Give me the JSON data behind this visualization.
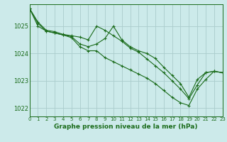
{
  "title": "Graphe pression niveau de la mer (hPa)",
  "background_color": "#cceaea",
  "grid_color": "#aacccc",
  "line_color": "#1a6b1a",
  "spine_color": "#1a6b1a",
  "xlim": [
    0,
    23
  ],
  "ylim": [
    1021.7,
    1025.8
  ],
  "yticks": [
    1022,
    1023,
    1024,
    1025
  ],
  "xticks": [
    0,
    1,
    2,
    3,
    4,
    5,
    6,
    7,
    8,
    9,
    10,
    11,
    12,
    13,
    14,
    15,
    16,
    17,
    18,
    19,
    20,
    21,
    22,
    23
  ],
  "series": [
    [
      1025.65,
      1025.15,
      1024.85,
      1024.8,
      1024.7,
      1024.65,
      1024.6,
      1024.5,
      1025.0,
      1024.85,
      1024.65,
      1024.45,
      1024.2,
      1024.05,
      1023.8,
      1023.55,
      1023.3,
      1023.0,
      1022.7,
      1022.35,
      1022.85,
      1023.3,
      1023.35,
      1023.3
    ],
    [
      1025.65,
      1025.1,
      1024.82,
      1024.75,
      1024.68,
      1024.62,
      1024.35,
      1024.25,
      1024.35,
      1024.55,
      1025.0,
      1024.5,
      1024.25,
      1024.1,
      1024.0,
      1023.82,
      1023.5,
      1023.2,
      1022.9,
      1022.4,
      1023.05,
      1023.3,
      1023.35,
      1023.3
    ],
    [
      1025.65,
      1025.0,
      1024.82,
      1024.75,
      1024.68,
      1024.58,
      1024.25,
      1024.1,
      1024.1,
      1023.85,
      1023.7,
      1023.55,
      1023.4,
      1023.25,
      1023.1,
      1022.9,
      1022.65,
      1022.4,
      1022.2,
      1022.1,
      1022.7,
      1023.05,
      1023.35,
      1023.3
    ]
  ]
}
